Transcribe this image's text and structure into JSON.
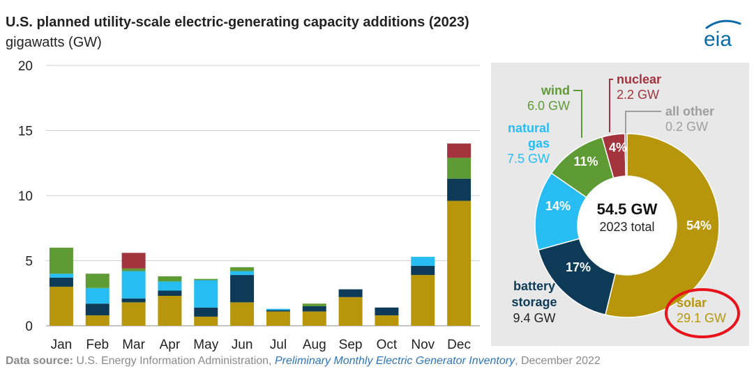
{
  "title": "U.S. planned utility-scale electric-generating capacity additions (2023)",
  "subtitle": "gigawatts (GW)",
  "logo_text": "eia",
  "source": {
    "label": "Data source:",
    "org": "U.S. Energy Information Administration,",
    "publication": "Preliminary Monthly Electric Generator Inventory",
    "date": ", December 2022"
  },
  "colors": {
    "solar": "#b8960c",
    "battery": "#0d3b57",
    "natural_gas": "#27bdf3",
    "wind": "#5e9b35",
    "nuclear": "#a3333d",
    "all_other": "#9e9e9e",
    "logo": "#0a6aa8",
    "highlight": "#e8131b"
  },
  "chart_data": [
    {
      "type": "bar",
      "stacked": true,
      "categories": [
        "Jan",
        "Feb",
        "Mar",
        "Apr",
        "May",
        "Jun",
        "Jul",
        "Aug",
        "Sep",
        "Oct",
        "Nov",
        "Dec"
      ],
      "ylim": [
        0,
        20
      ],
      "yticks": [
        0,
        5,
        10,
        15,
        20
      ],
      "grid": true,
      "series": [
        {
          "key": "solar",
          "values": [
            3.0,
            0.8,
            1.8,
            2.3,
            0.7,
            1.8,
            1.1,
            1.1,
            2.2,
            0.8,
            3.9,
            9.6
          ]
        },
        {
          "key": "battery",
          "values": [
            0.7,
            0.9,
            0.3,
            0.4,
            0.7,
            2.1,
            0.1,
            0.4,
            0.6,
            0.6,
            0.7,
            1.7
          ]
        },
        {
          "key": "natural_gas",
          "values": [
            0.3,
            1.2,
            2.1,
            0.7,
            2.1,
            0.3,
            0.1,
            0.0,
            0.0,
            0.0,
            0.7,
            0.0
          ]
        },
        {
          "key": "wind",
          "values": [
            2.0,
            1.1,
            0.2,
            0.4,
            0.1,
            0.3,
            0.0,
            0.2,
            0.0,
            0.0,
            0.0,
            1.6
          ]
        },
        {
          "key": "nuclear",
          "values": [
            0,
            0,
            1.2,
            0,
            0,
            0,
            0,
            0,
            0,
            0,
            0,
            1.1
          ]
        }
      ]
    },
    {
      "type": "pie",
      "donut": true,
      "total_value": "54.5 GW",
      "total_label": "2023 total",
      "slices": [
        {
          "key": "solar",
          "label": "solar",
          "value": "29.1 GW",
          "percent": "54%",
          "share": 54
        },
        {
          "key": "battery",
          "label": "battery storage",
          "value": "9.4 GW",
          "percent": "17%",
          "share": 17
        },
        {
          "key": "natural_gas",
          "label": "natural gas",
          "value": "7.5 GW",
          "percent": "14%",
          "share": 14
        },
        {
          "key": "wind",
          "label": "wind",
          "value": "6.0 GW",
          "percent": "11%",
          "share": 11
        },
        {
          "key": "nuclear",
          "label": "nuclear",
          "value": "2.2 GW",
          "percent": "4%",
          "share": 4
        },
        {
          "key": "all_other",
          "label": "all other",
          "value": "0.2 GW",
          "percent": "",
          "share": 0.4
        }
      ]
    }
  ]
}
